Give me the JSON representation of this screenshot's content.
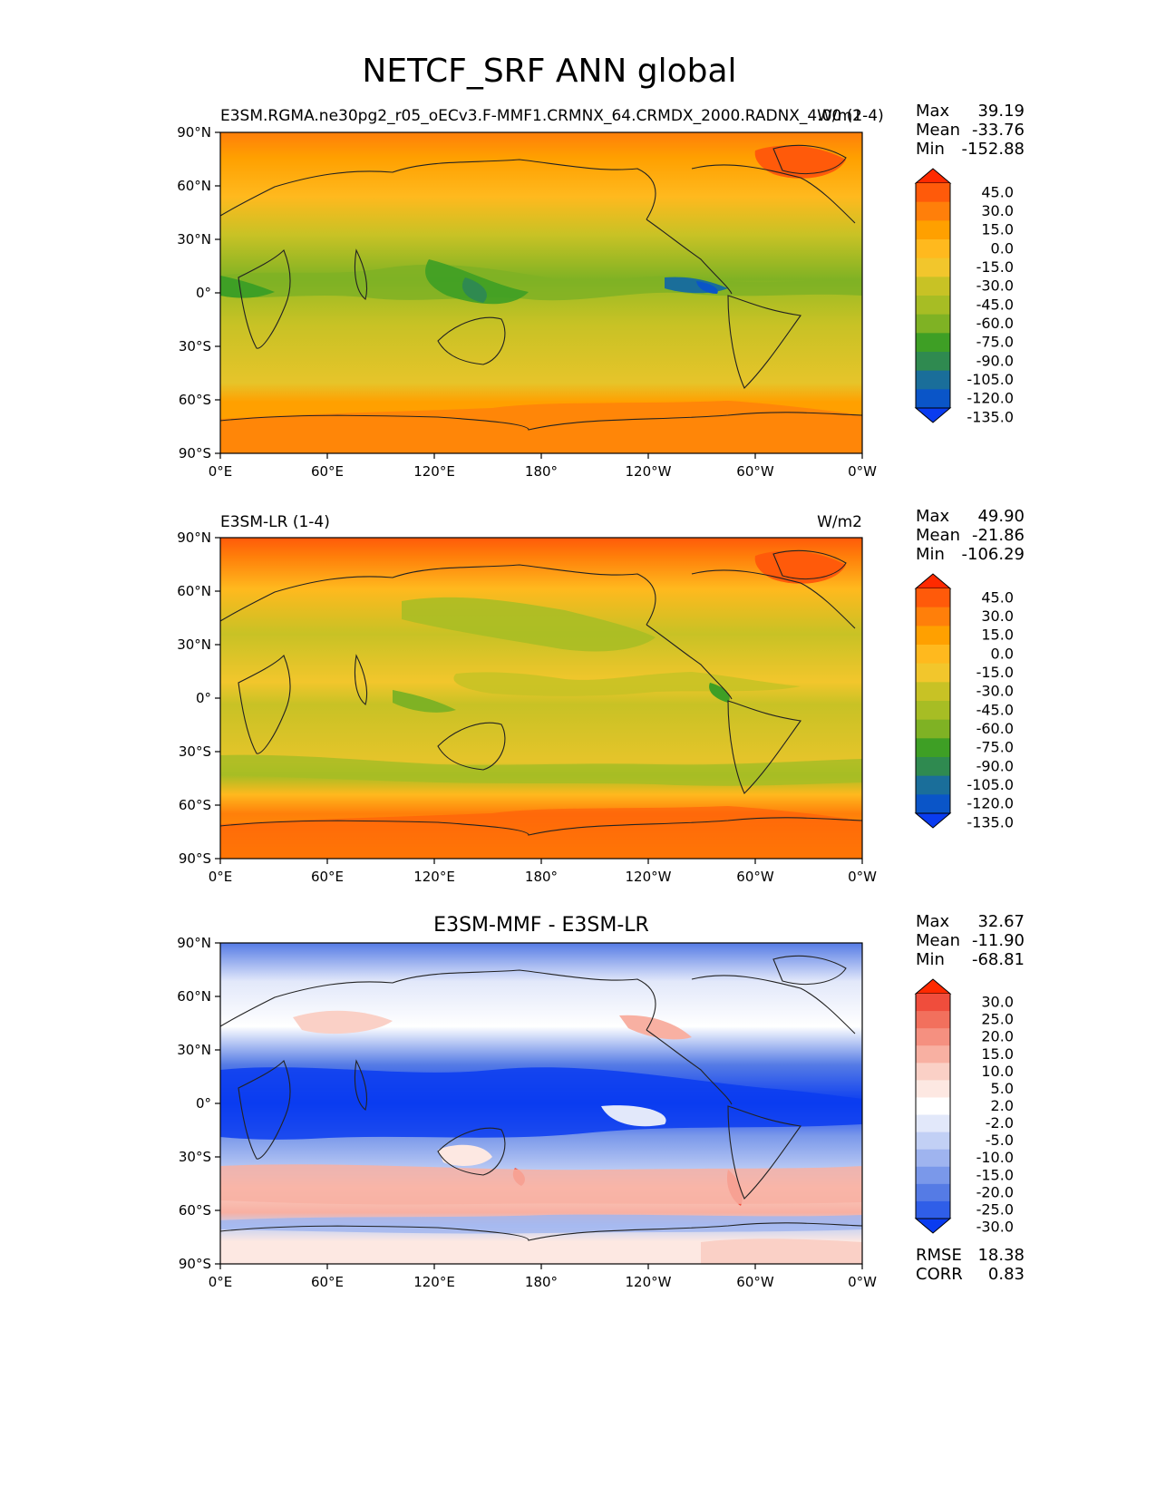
{
  "figure": {
    "title": "NETCF_SRF ANN global"
  },
  "lat_ticks": [
    "90°N",
    "60°N",
    "30°N",
    "0°",
    "30°S",
    "60°S",
    "90°S"
  ],
  "lon_ticks": [
    "0°E",
    "60°E",
    "120°E",
    "180°",
    "120°W",
    "60°W",
    "0°W"
  ],
  "panels": [
    {
      "left_title": "E3SM.RGMA.ne30pg2_r05_oECv3.F-MMF1.CRMNX_64.CRMDX_2000.RADNX_4.00 (1-4)",
      "center_title": "",
      "units": "W/m2",
      "stats": [
        {
          "label": "Max",
          "value": "39.19"
        },
        {
          "label": "Mean",
          "value": "-33.76"
        },
        {
          "label": "Min",
          "value": "-152.88"
        }
      ],
      "colorbar_labels": [
        "45.0",
        "30.0",
        "15.0",
        "0.0",
        "-15.0",
        "-30.0",
        "-45.0",
        "-60.0",
        "-75.0",
        "-90.0",
        "-105.0",
        "-120.0",
        "-135.0"
      ],
      "colorbar_colors": [
        "#ff2a00",
        "#ff5a0a",
        "#ff7f0a",
        "#ffa000",
        "#ffb91e",
        "#f2c62c",
        "#c8c225",
        "#a7bd24",
        "#7fb224",
        "#3e9f25",
        "#2f8a50",
        "#1a6e9a",
        "#0a55c8",
        "#0a3cf0"
      ]
    },
    {
      "left_title": "E3SM-LR (1-4)",
      "center_title": "",
      "units": "W/m2",
      "stats": [
        {
          "label": "Max",
          "value": "49.90"
        },
        {
          "label": "Mean",
          "value": "-21.86"
        },
        {
          "label": "Min",
          "value": "-106.29"
        }
      ],
      "colorbar_labels": [
        "45.0",
        "30.0",
        "15.0",
        "0.0",
        "-15.0",
        "-30.0",
        "-45.0",
        "-60.0",
        "-75.0",
        "-90.0",
        "-105.0",
        "-120.0",
        "-135.0"
      ],
      "colorbar_colors": [
        "#ff2a00",
        "#ff5a0a",
        "#ff7f0a",
        "#ffa000",
        "#ffb91e",
        "#f2c62c",
        "#c8c225",
        "#a7bd24",
        "#7fb224",
        "#3e9f25",
        "#2f8a50",
        "#1a6e9a",
        "#0a55c8",
        "#0a3cf0"
      ]
    },
    {
      "left_title": "",
      "center_title": "E3SM-MMF - E3SM-LR",
      "units": "",
      "stats": [
        {
          "label": "Max",
          "value": "32.67"
        },
        {
          "label": "Mean",
          "value": "-11.90"
        },
        {
          "label": "Min",
          "value": "-68.81"
        }
      ],
      "extra_stats": [
        {
          "label": "RMSE",
          "value": "18.38"
        },
        {
          "label": "CORR",
          "value": "0.83"
        }
      ],
      "colorbar_labels": [
        "30.0",
        "25.0",
        "20.0",
        "15.0",
        "10.0",
        "5.0",
        "2.0",
        "-2.0",
        "-5.0",
        "-10.0",
        "-15.0",
        "-20.0",
        "-25.0",
        "-30.0"
      ],
      "colorbar_colors": [
        "#ff2a00",
        "#f04d3c",
        "#f2705d",
        "#f59080",
        "#f8b0a2",
        "#fad0c6",
        "#fde8e2",
        "#ffffff",
        "#e2e8fa",
        "#c2d0f5",
        "#9fb4ef",
        "#7a98ea",
        "#557be5",
        "#2f5ee8",
        "#0a3cf0"
      ]
    }
  ],
  "chart_data": [
    {
      "type": "heatmap",
      "title": "E3SM.RGMA.ne30pg2_r05_oECv3.F-MMF1.CRMNX_64.CRMDX_2000.RADNX_4.00 (1-4)",
      "units": "W/m2",
      "xlim": [
        0,
        360
      ],
      "ylim": [
        -90,
        90
      ],
      "x_ticks": [
        "0°E",
        "60°E",
        "120°E",
        "180°",
        "120°W",
        "60°W",
        "0°W"
      ],
      "y_ticks": [
        "90°N",
        "60°N",
        "30°N",
        "0°",
        "30°S",
        "60°S",
        "90°S"
      ],
      "contour_levels": [
        -135,
        -120,
        -105,
        -90,
        -75,
        -60,
        -45,
        -30,
        -15,
        0,
        15,
        30,
        45
      ],
      "max": 39.19,
      "mean": -33.76,
      "min": -152.88
    },
    {
      "type": "heatmap",
      "title": "E3SM-LR (1-4)",
      "units": "W/m2",
      "xlim": [
        0,
        360
      ],
      "ylim": [
        -90,
        90
      ],
      "x_ticks": [
        "0°E",
        "60°E",
        "120°E",
        "180°",
        "120°W",
        "60°W",
        "0°W"
      ],
      "y_ticks": [
        "90°N",
        "60°N",
        "30°N",
        "0°",
        "30°S",
        "60°S",
        "90°S"
      ],
      "contour_levels": [
        -135,
        -120,
        -105,
        -90,
        -75,
        -60,
        -45,
        -30,
        -15,
        0,
        15,
        30,
        45
      ],
      "max": 49.9,
      "mean": -21.86,
      "min": -106.29
    },
    {
      "type": "heatmap",
      "title": "E3SM-MMF - E3SM-LR",
      "xlim": [
        0,
        360
      ],
      "ylim": [
        -90,
        90
      ],
      "x_ticks": [
        "0°E",
        "60°E",
        "120°E",
        "180°",
        "120°W",
        "60°W",
        "0°W"
      ],
      "y_ticks": [
        "90°N",
        "60°N",
        "30°N",
        "0°",
        "30°S",
        "60°S",
        "90°S"
      ],
      "contour_levels": [
        -30,
        -25,
        -20,
        -15,
        -10,
        -5,
        -2,
        2,
        5,
        10,
        15,
        20,
        25,
        30
      ],
      "max": 32.67,
      "mean": -11.9,
      "min": -68.81,
      "rmse": 18.38,
      "corr": 0.83
    }
  ]
}
